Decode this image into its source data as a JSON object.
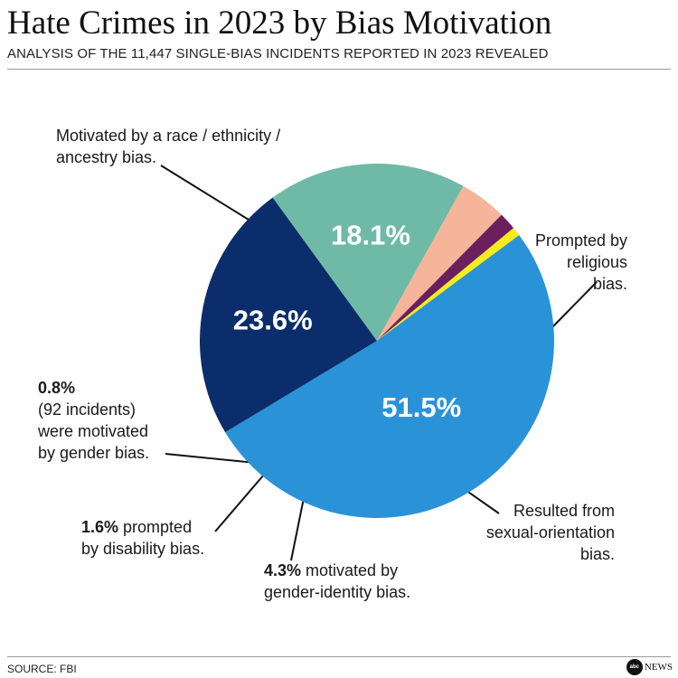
{
  "title": "Hate Crimes in 2023 by Bias Motivation",
  "subtitle": "ANALYSIS OF THE 11,447 SINGLE-BIAS INCIDENTS REPORTED IN 2023 REVEALED",
  "source": "SOURCE: FBI",
  "logo": {
    "mark": "abc",
    "text": "NEWS"
  },
  "annotations": {
    "race_line1": "Motivated by a race / ethnicity /",
    "race_line2": "ancestry bias.",
    "religion_line1": "Prompted by",
    "religion_line2": "religious",
    "religion_line3": "bias.",
    "sexual_line1": "Resulted from",
    "sexual_line2": "sexual-orientation",
    "sexual_line3": "bias.",
    "gender_identity_pct": "4.3%",
    "gender_identity_line1": " motivated by",
    "gender_identity_line2": "gender-identity bias.",
    "disability_pct": "1.6%",
    "disability_line1": " prompted",
    "disability_line2": "by disability bias.",
    "gender_pct": "0.8%",
    "gender_line1": "(92 incidents)",
    "gender_line2": "were motivated",
    "gender_line3": "by gender bias."
  },
  "colors": {
    "race": "#2a93d8",
    "religion": "#0b2d6b",
    "sexual_orientation": "#6fbaa6",
    "gender_identity": "#f6b49a",
    "disability": "#6b1f5c",
    "gender": "#f5ec1a"
  },
  "chart_data": {
    "type": "pie",
    "title": "Hate Crimes in 2023 by Bias Motivation",
    "slices": [
      {
        "key": "race",
        "label": "Motivated by a race / ethnicity / ancestry bias.",
        "value": 51.5,
        "display": "51.5%",
        "color": "#2a93d8",
        "label_color": "#ffffff",
        "show_inside": true
      },
      {
        "key": "religion",
        "label": "Prompted by religious bias.",
        "value": 23.6,
        "display": "23.6%",
        "color": "#0b2d6b",
        "label_color": "#ffffff",
        "show_inside": true
      },
      {
        "key": "sexual_orientation",
        "label": "Resulted from sexual-orientation bias.",
        "value": 18.1,
        "display": "18.1%",
        "color": "#6fbaa6",
        "label_color": "#ffffff",
        "show_inside": true
      },
      {
        "key": "gender_identity",
        "label": "motivated by gender-identity bias.",
        "value": 4.3,
        "display": "4.3%",
        "color": "#f6b49a",
        "show_inside": false
      },
      {
        "key": "disability",
        "label": "prompted by disability bias.",
        "value": 1.6,
        "display": "1.6%",
        "color": "#6b1f5c",
        "show_inside": false
      },
      {
        "key": "gender",
        "label": "were motivated by gender bias.",
        "value": 0.8,
        "display": "0.8%",
        "color": "#f5ec1a",
        "show_inside": false
      }
    ]
  }
}
